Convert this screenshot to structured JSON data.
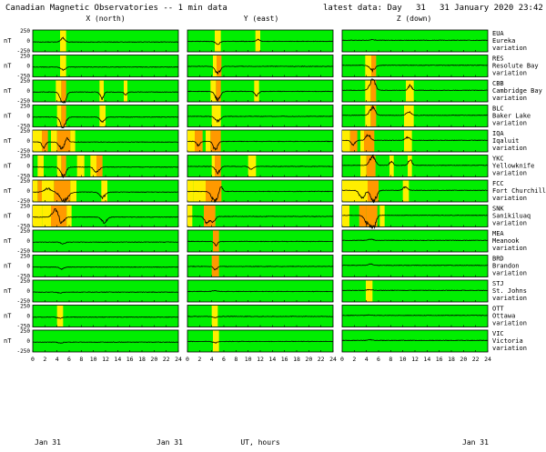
{
  "header": {
    "title": "Canadian Magnetic Observatories -- 1 min data",
    "latest_label": "latest data: Day",
    "day": "31",
    "datetime": "31 January 2020 23:42 UT"
  },
  "columns": [
    {
      "label": "X (north)"
    },
    {
      "label": "Y (east)"
    },
    {
      "label": "Z (down)"
    }
  ],
  "unit_label": "nT",
  "y_ticks": [
    "250",
    "0",
    "-250"
  ],
  "x_ticks": [
    "0",
    "2",
    "4",
    "6",
    "8",
    "10",
    "12",
    "14",
    "16",
    "18",
    "20",
    "22",
    "24"
  ],
  "footer": {
    "left_date": "Jan 31",
    "right_date": "Jan 31",
    "axis_label": "UT, hours"
  },
  "colors": {
    "quiet": "#00ee00",
    "moderate": "#ffee00",
    "active": "#ff9900",
    "trace": "#000000",
    "storm_trace": "#cc0000"
  },
  "chart_data": {
    "type": "line",
    "title": "Canadian Magnetic Observatories -- 1 min data",
    "xlabel": "UT, hours",
    "ylabel": "nT",
    "xlim": [
      0,
      24
    ],
    "ylim": [
      -250,
      250
    ],
    "columns": [
      "X (north)",
      "Y (east)",
      "Z (down)"
    ],
    "stations": [
      {
        "code": "EUA",
        "name": "Eureka",
        "bands": [
          [
            [
              4.5,
              5.5,
              "y"
            ]
          ],
          [
            [
              4.5,
              5.5,
              "y"
            ],
            [
              11.2,
              12.0,
              "y"
            ]
          ],
          []
        ],
        "events": [
          [
            [
              5.0,
              90,
              0.5
            ]
          ],
          [
            [
              5.0,
              -60,
              0.5
            ],
            [
              11.6,
              40,
              0.4
            ]
          ],
          [
            [
              5.0,
              15,
              0.5
            ]
          ]
        ]
      },
      {
        "code": "RES",
        "name": "Resolute Bay",
        "bands": [
          [
            [
              4.5,
              5.5,
              "y"
            ]
          ],
          [
            [
              4.2,
              4.8,
              "y"
            ],
            [
              4.8,
              5.6,
              "o"
            ]
          ],
          [
            [
              3.8,
              4.8,
              "y"
            ],
            [
              4.8,
              5.6,
              "o"
            ]
          ]
        ],
        "events": [
          [
            [
              5.0,
              -70,
              0.5
            ]
          ],
          [
            [
              5.0,
              -150,
              0.6
            ]
          ],
          [
            [
              5.0,
              -110,
              0.6
            ]
          ]
        ]
      },
      {
        "code": "CBB",
        "name": "Cambridge Bay",
        "bands": [
          [
            [
              3.8,
              4.7,
              "y"
            ],
            [
              4.7,
              5.5,
              "o"
            ],
            [
              11.0,
              11.7,
              "y"
            ],
            [
              15.0,
              15.6,
              "y"
            ]
          ],
          [
            [
              3.8,
              4.7,
              "y"
            ],
            [
              4.7,
              5.5,
              "o"
            ],
            [
              11.0,
              11.8,
              "y"
            ]
          ],
          [
            [
              3.8,
              4.7,
              "y"
            ],
            [
              4.7,
              5.6,
              "o"
            ],
            [
              10.5,
              11.8,
              "y"
            ]
          ]
        ],
        "events": [
          [
            [
              5.0,
              -280,
              0.6
            ],
            [
              11.4,
              -150,
              0.4
            ],
            [
              15.3,
              -70,
              0.3
            ]
          ],
          [
            [
              5.0,
              -180,
              0.6
            ],
            [
              11.4,
              -90,
              0.4
            ]
          ],
          [
            [
              5.0,
              260,
              0.6
            ],
            [
              11.2,
              110,
              0.4
            ]
          ]
        ]
      },
      {
        "code": "BLC",
        "name": "Baker Lake",
        "bands": [
          [
            [
              4.0,
              4.7,
              "y"
            ],
            [
              4.7,
              5.5,
              "o"
            ],
            [
              11.0,
              12.0,
              "y"
            ]
          ],
          [
            [
              4.0,
              5.5,
              "y"
            ]
          ],
          [
            [
              3.8,
              4.7,
              "y"
            ],
            [
              4.7,
              5.6,
              "o"
            ],
            [
              10.2,
              11.8,
              "y"
            ]
          ]
        ],
        "events": [
          [
            [
              5.0,
              -230,
              0.6
            ],
            [
              11.5,
              -110,
              0.5
            ]
          ],
          [
            [
              5.0,
              -110,
              0.6
            ]
          ],
          [
            [
              5.0,
              170,
              0.6
            ],
            [
              11.0,
              80,
              0.5
            ]
          ]
        ]
      },
      {
        "code": "IQA",
        "name": "Iqaluit",
        "bands": [
          [
            [
              0,
              1.5,
              "y"
            ],
            [
              1.5,
              2.5,
              "o"
            ],
            [
              3.0,
              4.0,
              "y"
            ],
            [
              4.0,
              6.2,
              "o"
            ],
            [
              6.2,
              7.0,
              "y"
            ]
          ],
          [
            [
              0,
              1.2,
              "y"
            ],
            [
              1.2,
              2.5,
              "o"
            ],
            [
              3.0,
              3.8,
              "y"
            ],
            [
              3.8,
              5.5,
              "o"
            ]
          ],
          [
            [
              0,
              1.3,
              "y"
            ],
            [
              1.3,
              2.5,
              "o"
            ],
            [
              3.0,
              3.6,
              "y"
            ],
            [
              3.6,
              5.3,
              "o"
            ],
            [
              10.2,
              11.5,
              "y"
            ]
          ]
        ],
        "events": [
          [
            [
              1.8,
              -120,
              0.4
            ],
            [
              4.8,
              -150,
              0.6
            ],
            [
              5.6,
              100,
              0.4
            ]
          ],
          [
            [
              1.8,
              -100,
              0.4
            ],
            [
              4.6,
              -180,
              0.5
            ]
          ],
          [
            [
              1.8,
              -100,
              0.5
            ],
            [
              4.3,
              130,
              0.5
            ],
            [
              10.8,
              70,
              0.5
            ]
          ]
        ]
      },
      {
        "code": "YKC",
        "name": "Yellowknife",
        "bands": [
          [
            [
              0.8,
              1.8,
              "y"
            ],
            [
              4.0,
              4.7,
              "y"
            ],
            [
              4.7,
              5.5,
              "o"
            ],
            [
              7.3,
              8.5,
              "y"
            ],
            [
              9.5,
              10.5,
              "y"
            ],
            [
              10.5,
              11.5,
              "o"
            ]
          ],
          [
            [
              4.0,
              4.5,
              "y"
            ],
            [
              4.5,
              5.5,
              "o"
            ],
            [
              10.0,
              11.3,
              "y"
            ]
          ],
          [
            [
              3.0,
              4.0,
              "y"
            ],
            [
              4.0,
              5.5,
              "o"
            ],
            [
              7.8,
              8.5,
              "y"
            ],
            [
              10.8,
              11.5,
              "y"
            ]
          ]
        ],
        "events": [
          [
            [
              5.0,
              -220,
              0.6
            ],
            [
              10.5,
              -110,
              0.6
            ]
          ],
          [
            [
              5.0,
              -150,
              0.5
            ],
            [
              10.5,
              -60,
              0.5
            ]
          ],
          [
            [
              5.0,
              200,
              0.6
            ],
            [
              8.1,
              80,
              0.4
            ],
            [
              11.2,
              140,
              0.4
            ]
          ]
        ]
      },
      {
        "code": "FCC",
        "name": "Fort Churchill",
        "bands": [
          [
            [
              0,
              0.8,
              "y"
            ],
            [
              0.8,
              1.5,
              "o"
            ],
            [
              1.5,
              3.5,
              "y"
            ],
            [
              3.5,
              6.2,
              "o"
            ],
            [
              6.2,
              7.2,
              "y"
            ],
            [
              11.3,
              12.3,
              "y"
            ]
          ],
          [
            [
              0,
              1.0,
              "y"
            ],
            [
              1.0,
              3.0,
              "y"
            ],
            [
              3.0,
              5.6,
              "o"
            ]
          ],
          [
            [
              0,
              1.2,
              "y"
            ],
            [
              1.2,
              4.2,
              "y"
            ],
            [
              4.2,
              6.0,
              "o"
            ],
            [
              10.0,
              11.0,
              "y"
            ]
          ]
        ],
        "events": [
          [
            [
              2.5,
              80,
              0.8
            ],
            [
              5.2,
              -200,
              0.9
            ],
            [
              11.5,
              -120,
              0.6
            ]
          ],
          [
            [
              4.5,
              -220,
              0.7
            ],
            [
              5.5,
              120,
              0.4
            ]
          ],
          [
            [
              3.3,
              -180,
              0.6
            ],
            [
              5.2,
              -260,
              0.6
            ],
            [
              10.4,
              80,
              0.5
            ]
          ]
        ]
      },
      {
        "code": "SNK",
        "name": "Sanikiluaq",
        "bands": [
          [
            [
              0,
              1.6,
              "y"
            ],
            [
              1.6,
              3.0,
              "y"
            ],
            [
              3.0,
              5.6,
              "o"
            ],
            [
              5.6,
              6.4,
              "y"
            ]
          ],
          [
            [
              0,
              0.8,
              "y"
            ],
            [
              2.7,
              3.6,
              "o"
            ],
            [
              3.6,
              4.6,
              "o"
            ]
          ],
          [
            [
              0,
              1.2,
              "y"
            ],
            [
              2.8,
              4.0,
              "o"
            ],
            [
              4.0,
              5.8,
              "o"
            ],
            [
              6.2,
              7.0,
              "y"
            ]
          ]
        ],
        "events": [
          [
            [
              3.8,
              180,
              0.7
            ],
            [
              4.7,
              -160,
              0.6
            ],
            [
              11.8,
              -120,
              0.6
            ]
          ],
          [
            [
              3.2,
              -160,
              0.5
            ],
            [
              4.2,
              -140,
              0.5
            ]
          ],
          [
            [
              4.3,
              -200,
              0.7
            ],
            [
              5.2,
              -250,
              0.5
            ]
          ]
        ]
      },
      {
        "code": "MEA",
        "name": "Meanook",
        "bands": [
          [],
          [
            [
              4.2,
              5.2,
              "o"
            ]
          ],
          []
        ],
        "events": [
          [
            [
              5.0,
              -40,
              0.5
            ]
          ],
          [
            [
              4.7,
              -80,
              0.4
            ]
          ],
          [
            [
              4.7,
              30,
              0.5
            ]
          ]
        ]
      },
      {
        "code": "BRD",
        "name": "Brandon",
        "bands": [
          [],
          [
            [
              4.0,
              5.2,
              "o"
            ]
          ],
          []
        ],
        "events": [
          [
            [
              4.8,
              -40,
              0.5
            ]
          ],
          [
            [
              4.6,
              -70,
              0.4
            ]
          ],
          [
            [
              4.7,
              30,
              0.5
            ]
          ]
        ]
      },
      {
        "code": "STJ",
        "name": "St. Johns",
        "bands": [
          [],
          [],
          [
            [
              3.9,
              5.0,
              "y"
            ]
          ]
        ],
        "events": [
          [
            [
              4.5,
              -20,
              0.5
            ]
          ],
          [
            [
              4.5,
              20,
              0.5
            ]
          ],
          [
            [
              4.5,
              20,
              0.5
            ]
          ]
        ]
      },
      {
        "code": "OTT",
        "name": "Ottawa",
        "bands": [
          [
            [
              4.0,
              5.0,
              "y"
            ]
          ],
          [
            [
              4.0,
              5.0,
              "y"
            ]
          ],
          []
        ],
        "events": [
          [
            [
              4.5,
              -25,
              0.5
            ]
          ],
          [
            [
              4.5,
              -25,
              0.5
            ]
          ],
          [
            [
              4.5,
              10,
              0.5
            ]
          ]
        ]
      },
      {
        "code": "VIC",
        "name": "Victoria",
        "bands": [
          [],
          [
            [
              4.2,
              5.2,
              "y"
            ]
          ],
          []
        ],
        "events": [
          [
            [
              4.6,
              -20,
              0.5
            ]
          ],
          [
            [
              4.6,
              -30,
              0.5
            ]
          ],
          [
            [
              4.6,
              15,
              0.5
            ]
          ]
        ]
      }
    ]
  }
}
